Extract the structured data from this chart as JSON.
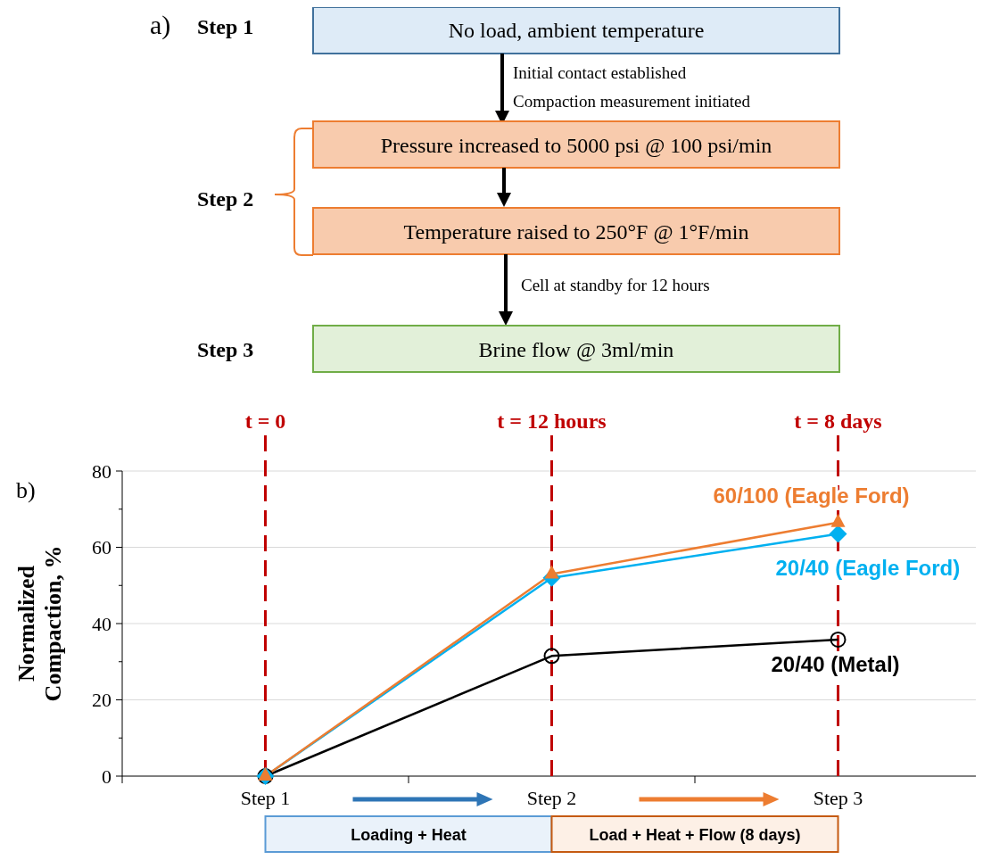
{
  "chart_data": [
    {
      "type": "other",
      "title": "a)",
      "annotations": [
        "Step 1",
        "No load, ambient temperature",
        "Initial contact established",
        "Compaction measurement initiated",
        "Step 2",
        "Pressure increased to 5000 psi @ 100 psi/min",
        "Temperature raised to 250°F @ 1°F/min",
        "Cell at standby for 12 hours",
        "Step 3",
        "Brine flow @ 3ml/min"
      ]
    },
    {
      "type": "line",
      "title": "b)",
      "ylabel": "Normalized Compaction, %",
      "categories": [
        "Step 1",
        "Step 2",
        "Step 3"
      ],
      "series": [
        {
          "name": "20/40 (Metal)",
          "color": "#000000",
          "marker": "circle",
          "values": [
            0,
            31.5,
            35.8
          ]
        },
        {
          "name": "20/40 (Eagle Ford)",
          "color": "#00b0f0",
          "marker": "diamond",
          "values": [
            0,
            52,
            63.5
          ]
        },
        {
          "name": "60/100 (Eagle Ford)",
          "color": "#ed7d31",
          "marker": "triangle",
          "values": [
            0,
            53,
            66.5
          ]
        }
      ],
      "ylim": [
        0,
        80
      ],
      "yticks": [
        0,
        {
          "value": 10,
          "label": null
        },
        20,
        {
          "value": 30,
          "label": null
        },
        40,
        {
          "value": 50,
          "label": null
        },
        60,
        {
          "value": 70,
          "label": null
        },
        80
      ],
      "grid": "y",
      "legend": false,
      "line_style": "solid",
      "ref_lines": [
        {
          "axis": "x",
          "value": "Step 1",
          "label": "t = 0",
          "color": "#c00000",
          "line_style": "dashed"
        },
        {
          "axis": "x",
          "value": "Step 2",
          "label": "t = 12 hours",
          "color": "#c00000",
          "line_style": "dashed"
        },
        {
          "axis": "x",
          "value": "Step 3",
          "label": "t = 8 days",
          "color": "#c00000",
          "line_style": "dashed"
        }
      ],
      "annotations": [
        "Loading + Heat",
        "Load + Heat + Flow (8 days)"
      ]
    }
  ]
}
